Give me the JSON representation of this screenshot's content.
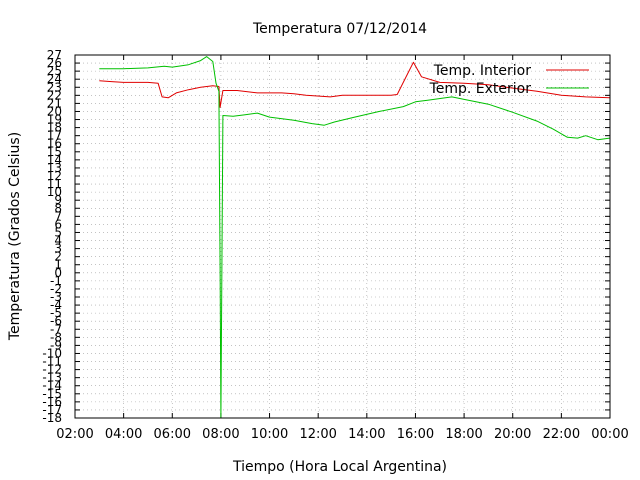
{
  "chart_data": {
    "type": "line",
    "title": "Temperatura 07/12/2014",
    "xlabel": "Tiempo (Hora Local Argentina)",
    "ylabel": "Temperatura (Grados Celsius)",
    "xlim": [
      "02:00",
      "00:00"
    ],
    "ylim": [
      -18,
      27
    ],
    "y_ticks": [
      "27",
      "26",
      "25",
      "24",
      "23",
      "22",
      "21",
      "20",
      "19",
      "18",
      "17",
      "16",
      "15",
      "14",
      "13",
      "12",
      "11",
      "10",
      "9",
      "8",
      "7",
      "6",
      "5",
      "4",
      "3",
      "2",
      "1",
      "0",
      "-1",
      "-2",
      "-3",
      "-4",
      "-5",
      "-6",
      "-7",
      "-8",
      "-9",
      "-10",
      "-11",
      "-12",
      "-13",
      "-14",
      "-15",
      "-16",
      "-17",
      "-18"
    ],
    "x_ticks": [
      "02:00",
      "04:00",
      "06:00",
      "08:00",
      "10:00",
      "12:00",
      "14:00",
      "16:00",
      "18:00",
      "20:00",
      "22:00",
      "00:00"
    ],
    "grid": true,
    "legend_position": "top-right",
    "series": [
      {
        "name": "Temp. Interior",
        "color": "#e00000",
        "points": [
          [
            "03:00",
            23.8
          ],
          [
            "03:30",
            23.7
          ],
          [
            "04:00",
            23.6
          ],
          [
            "05:00",
            23.6
          ],
          [
            "05:25",
            23.5
          ],
          [
            "05:35",
            21.8
          ],
          [
            "05:50",
            21.7
          ],
          [
            "06:10",
            22.3
          ],
          [
            "06:40",
            22.7
          ],
          [
            "07:10",
            23.0
          ],
          [
            "07:40",
            23.2
          ],
          [
            "07:55",
            23.1
          ],
          [
            "07:58",
            20.5
          ],
          [
            "08:05",
            22.6
          ],
          [
            "08:40",
            22.6
          ],
          [
            "09:30",
            22.3
          ],
          [
            "10:30",
            22.3
          ],
          [
            "11:00",
            22.2
          ],
          [
            "11:30",
            22.0
          ],
          [
            "12:30",
            21.8
          ],
          [
            "13:00",
            22.0
          ],
          [
            "14:00",
            22.0
          ],
          [
            "15:00",
            22.0
          ],
          [
            "15:15",
            22.1
          ],
          [
            "15:40",
            24.6
          ],
          [
            "15:55",
            26.1
          ],
          [
            "16:15",
            24.3
          ],
          [
            "17:00",
            23.6
          ],
          [
            "18:00",
            23.5
          ],
          [
            "19:00",
            23.3
          ],
          [
            "20:00",
            22.9
          ],
          [
            "21:00",
            22.5
          ],
          [
            "22:00",
            22.0
          ],
          [
            "23:00",
            21.8
          ],
          [
            "23:59",
            21.7
          ]
        ]
      },
      {
        "name": "Temp. Exterior",
        "color": "#00c000",
        "points": [
          [
            "03:00",
            25.3
          ],
          [
            "04:00",
            25.3
          ],
          [
            "05:00",
            25.4
          ],
          [
            "05:40",
            25.6
          ],
          [
            "06:00",
            25.5
          ],
          [
            "06:40",
            25.8
          ],
          [
            "07:10",
            26.3
          ],
          [
            "07:25",
            26.8
          ],
          [
            "07:40",
            26.2
          ],
          [
            "07:48",
            23.5
          ],
          [
            "07:55",
            22.5
          ],
          [
            "07:58",
            0.5
          ],
          [
            "08:00",
            -18
          ],
          [
            "08:05",
            19.5
          ],
          [
            "08:30",
            19.4
          ],
          [
            "09:00",
            19.6
          ],
          [
            "09:30",
            19.8
          ],
          [
            "10:00",
            19.3
          ],
          [
            "11:00",
            18.9
          ],
          [
            "11:45",
            18.5
          ],
          [
            "12:15",
            18.3
          ],
          [
            "12:40",
            18.7
          ],
          [
            "13:30",
            19.3
          ],
          [
            "14:30",
            20.0
          ],
          [
            "15:30",
            20.6
          ],
          [
            "16:00",
            21.2
          ],
          [
            "16:30",
            21.4
          ],
          [
            "17:30",
            21.8
          ],
          [
            "18:00",
            21.5
          ],
          [
            "19:00",
            20.9
          ],
          [
            "20:00",
            19.9
          ],
          [
            "21:00",
            18.8
          ],
          [
            "21:40",
            17.8
          ],
          [
            "22:15",
            16.8
          ],
          [
            "22:40",
            16.7
          ],
          [
            "23:00",
            17.0
          ],
          [
            "23:30",
            16.5
          ],
          [
            "23:59",
            16.7
          ]
        ]
      }
    ]
  }
}
